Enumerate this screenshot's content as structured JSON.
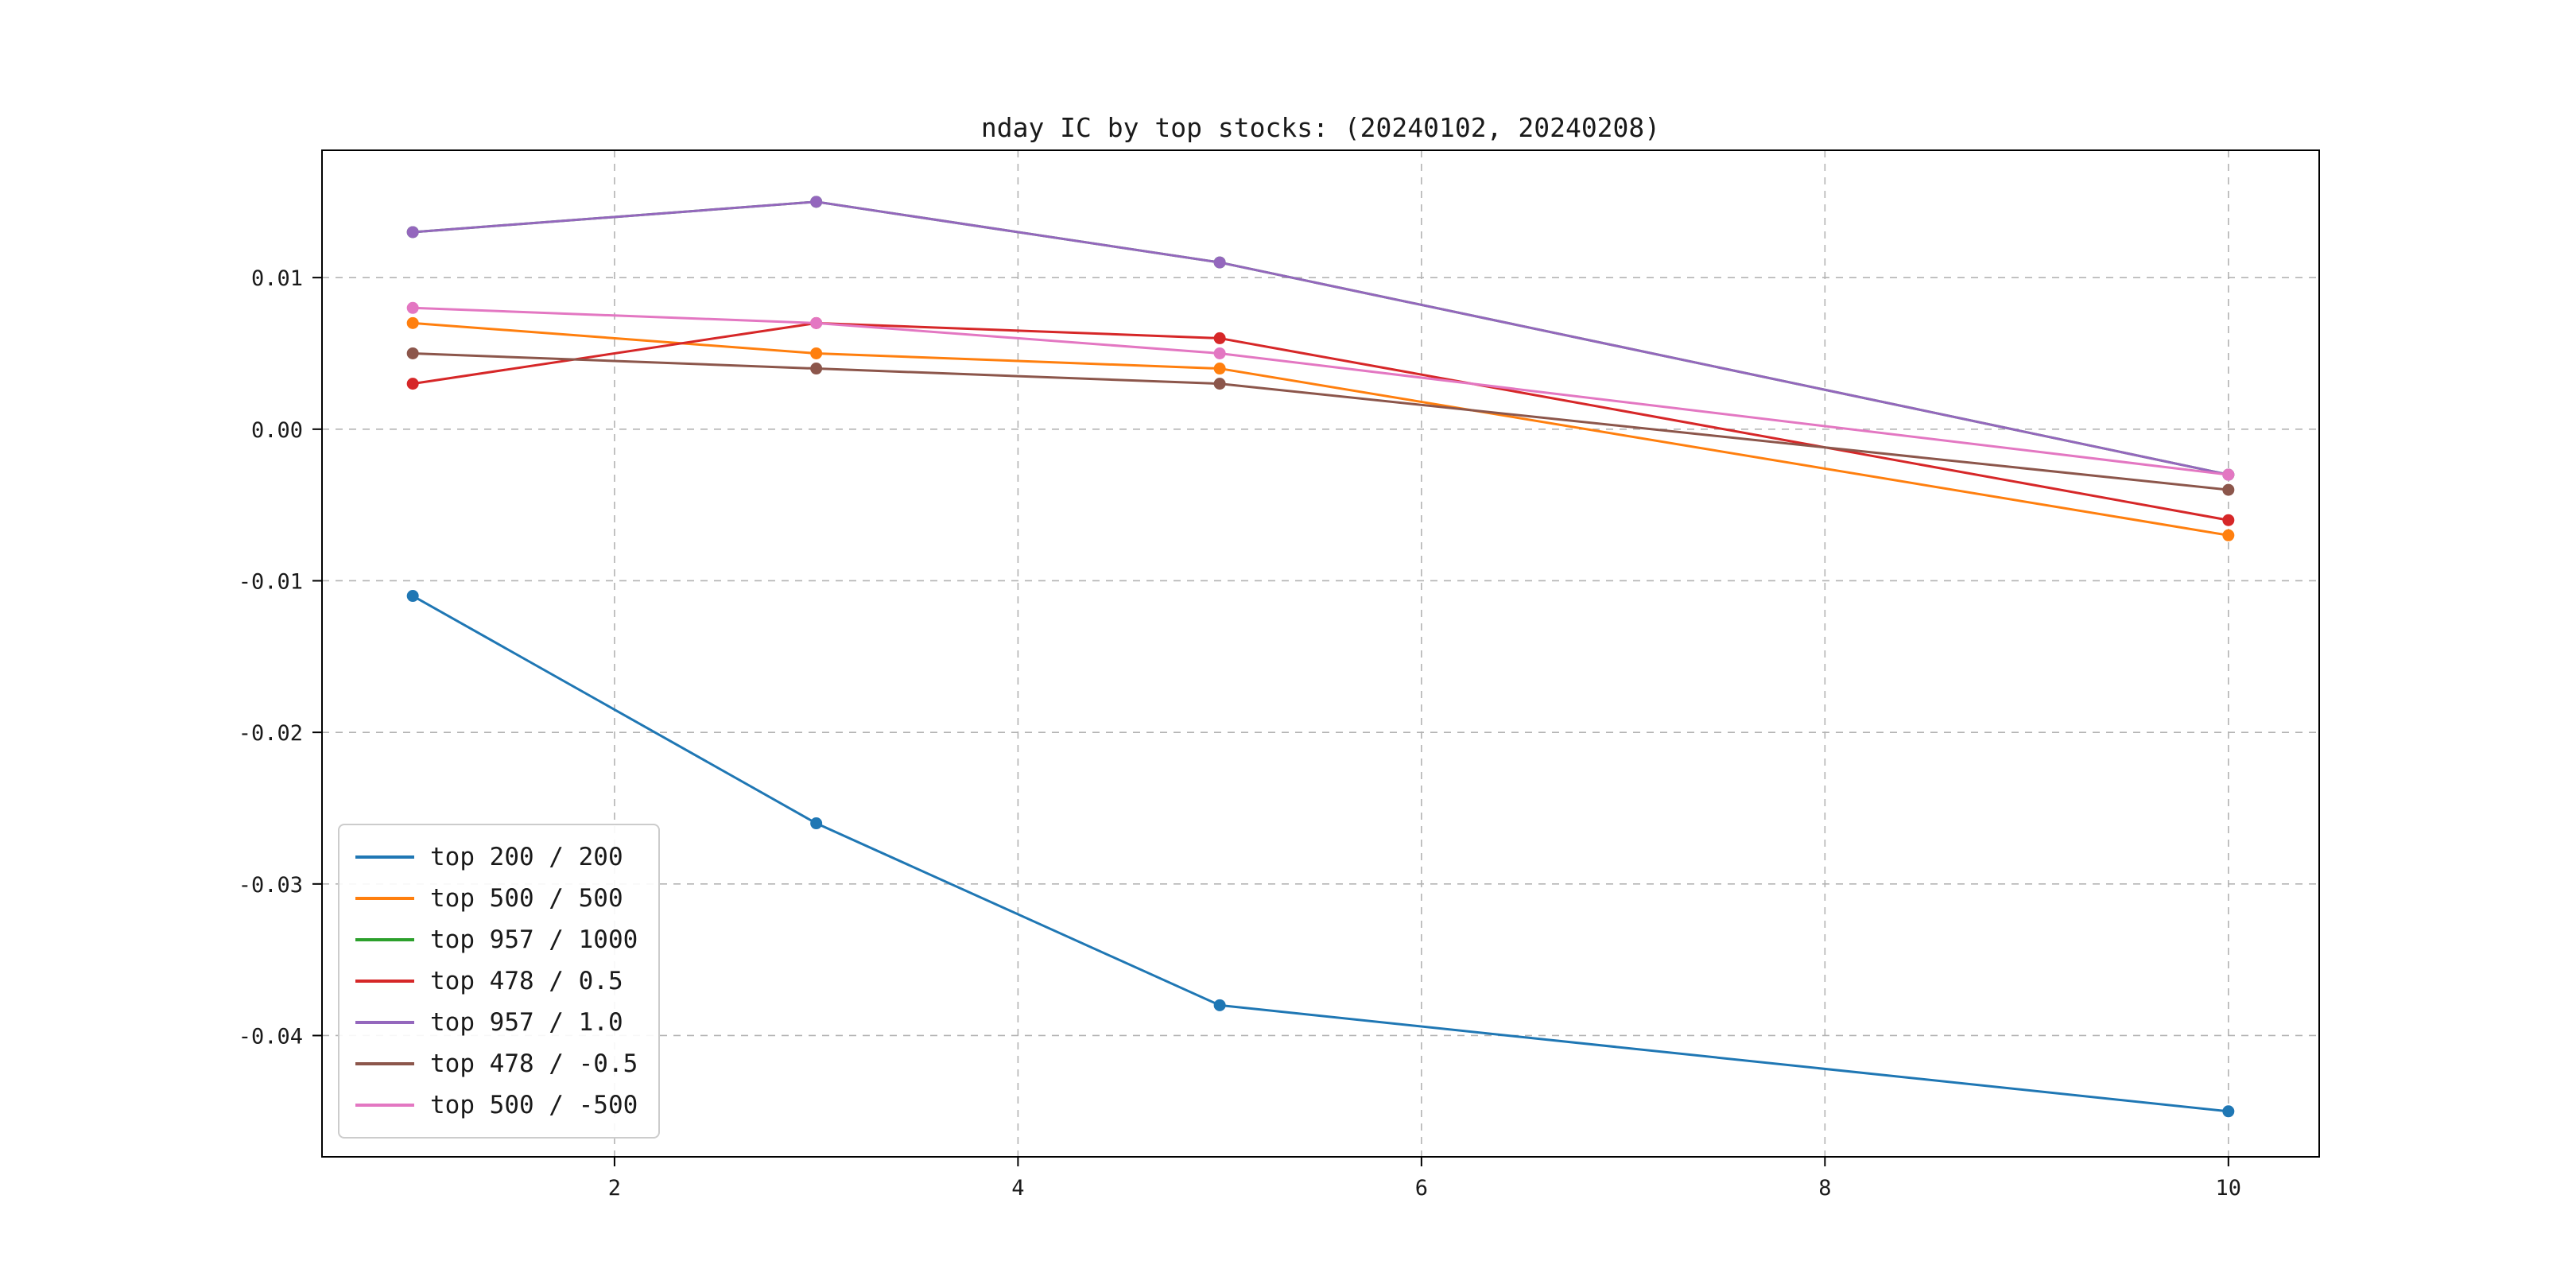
{
  "chart_data": {
    "type": "line",
    "title": "nday IC by top stocks: (20240102, 20240208)",
    "xlabel": "",
    "ylabel": "",
    "x": [
      1,
      3,
      5,
      10
    ],
    "series": [
      {
        "name": "top 200 / 200",
        "color": "#1f77b4",
        "values": [
          -0.011,
          -0.026,
          -0.038,
          -0.045
        ]
      },
      {
        "name": "top 500 / 500",
        "color": "#ff7f0e",
        "values": [
          0.007,
          0.005,
          0.004,
          -0.007
        ]
      },
      {
        "name": "top 957 / 1000",
        "color": "#2ca02c",
        "values": [
          0.013,
          0.015,
          0.011,
          -0.003
        ]
      },
      {
        "name": "top 478 / 0.5",
        "color": "#d62728",
        "values": [
          0.003,
          0.007,
          0.006,
          -0.006
        ]
      },
      {
        "name": "top 957 / 1.0",
        "color": "#9467bd",
        "values": [
          0.013,
          0.015,
          0.011,
          -0.003
        ]
      },
      {
        "name": "top 478 / -0.5",
        "color": "#8c564b",
        "values": [
          0.005,
          0.004,
          0.003,
          -0.004
        ]
      },
      {
        "name": "top 500 / -500",
        "color": "#e377c2",
        "values": [
          0.008,
          0.007,
          0.005,
          -0.003
        ]
      }
    ],
    "marker": "o",
    "xticks": {
      "values": [
        2,
        4,
        6,
        8,
        10
      ],
      "labels": [
        "2",
        "4",
        "6",
        "8",
        "10"
      ]
    },
    "yticks": {
      "values": [
        0.01,
        0.0,
        -0.01,
        -0.02,
        -0.03,
        -0.04
      ],
      "labels": [
        "0.01",
        "0.00",
        "-0.01",
        "-0.02",
        "-0.03",
        "-0.04"
      ]
    },
    "xlim": [
      0.55,
      10.45
    ],
    "ylim": [
      -0.048,
      0.0184
    ],
    "grid": true,
    "grid_style": "dashed",
    "legend_position": "lower left",
    "colors": {
      "grid": "#b3b3b3",
      "axis_border": "#000000",
      "text": "#1a1a1a",
      "background": "#ffffff"
    }
  }
}
